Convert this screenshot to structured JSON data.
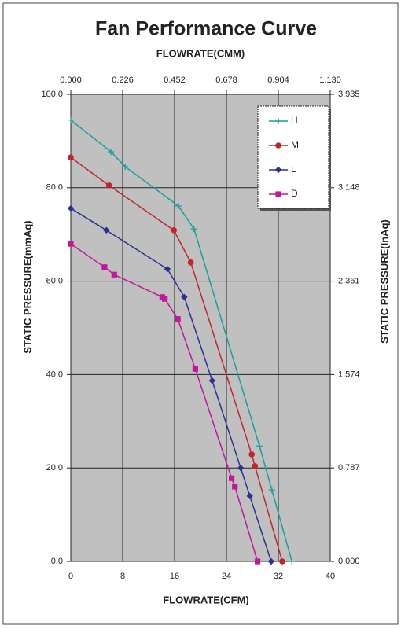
{
  "chart_data": {
    "type": "line",
    "title": "Fan Performance Curve",
    "x2label": "FLOWRATE(CMM)",
    "xlabel": "FLOWRATE(CFM)",
    "ylabel": "STATIC PRESSURE(mmAq)",
    "y2label": "STATIC PRESSURE(InAq)",
    "xlim": [
      0,
      40
    ],
    "xticks": [
      0,
      8,
      16,
      24,
      32,
      40
    ],
    "x2lim": [
      0,
      1.13
    ],
    "x2ticks": [
      {
        "value": 0,
        "label": "0.000"
      },
      {
        "value": 0.226,
        "label": "0.226"
      },
      {
        "value": 0.452,
        "label": "0.452"
      },
      {
        "value": 0.678,
        "label": "0.678"
      },
      {
        "value": 0.904,
        "label": "0.904"
      },
      {
        "value": 1.13,
        "label": "1.130"
      }
    ],
    "ylim": [
      0,
      100
    ],
    "yticks": [
      {
        "value": 0,
        "label": "0.0"
      },
      {
        "value": 20,
        "label": "20.0"
      },
      {
        "value": 40,
        "label": "40.0"
      },
      {
        "value": 60,
        "label": "60.0"
      },
      {
        "value": 80,
        "label": "80.0"
      },
      {
        "value": 100,
        "label": "100.0"
      }
    ],
    "y2lim": [
      0,
      3.935
    ],
    "y2ticks": [
      {
        "value": 0,
        "label": "0.000"
      },
      {
        "value": 0.787,
        "label": "0.787"
      },
      {
        "value": 1.574,
        "label": "1.574"
      },
      {
        "value": 2.361,
        "label": "2.361"
      },
      {
        "value": 3.148,
        "label": "3.148"
      },
      {
        "value": 3.935,
        "label": "3.935"
      }
    ],
    "grid": true,
    "legend": "upper right",
    "series": [
      {
        "name": "H",
        "color": "#1a9e9e",
        "marker": "plus",
        "x": [
          0,
          6.2,
          8.4,
          16.6,
          19.0,
          29.1,
          31.0,
          34.1
        ],
        "values": [
          94.5,
          87.7,
          84.5,
          76.1,
          71.2,
          24.7,
          15.3,
          0
        ]
      },
      {
        "name": "M",
        "color": "#c0272d",
        "marker": "circle",
        "x": [
          0,
          5.9,
          15.9,
          18.5,
          27.9,
          28.4,
          32.6
        ],
        "values": [
          86.5,
          80.5,
          70.9,
          64.0,
          22.9,
          20.4,
          0
        ]
      },
      {
        "name": "L",
        "color": "#2b3190",
        "marker": "diamond",
        "x": [
          0,
          5.5,
          14.9,
          17.5,
          21.8,
          26.2,
          27.6,
          30.9
        ],
        "values": [
          75.6,
          70.9,
          62.6,
          56.6,
          38.7,
          20.0,
          14.0,
          0
        ]
      },
      {
        "name": "D",
        "color": "#c2179b",
        "marker": "square",
        "x": [
          0,
          5.2,
          6.7,
          14.1,
          14.5,
          16.5,
          19.2,
          24.8,
          25.3,
          28.8
        ],
        "values": [
          68.0,
          63.0,
          61.4,
          56.6,
          56.2,
          51.9,
          41.2,
          17.8,
          16.0,
          0
        ]
      }
    ]
  }
}
